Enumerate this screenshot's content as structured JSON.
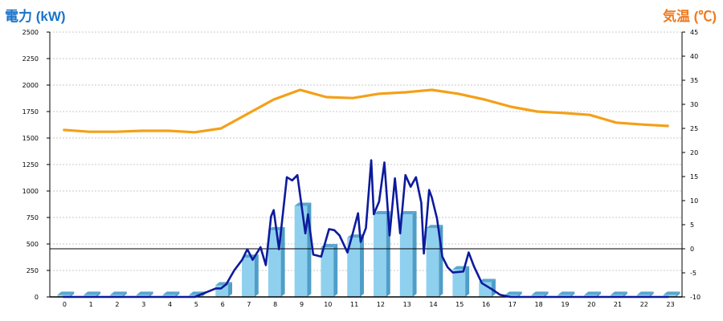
{
  "chart_data": {
    "type": "bar",
    "title_left": "電力 (kW)",
    "title_right": "気温 (℃)",
    "x_categories": [
      "0",
      "1",
      "2",
      "3",
      "4",
      "5",
      "6",
      "7",
      "8",
      "9",
      "10",
      "11",
      "12",
      "13",
      "14",
      "15",
      "16",
      "17",
      "18",
      "19",
      "20",
      "21",
      "22",
      "23"
    ],
    "y_left": {
      "range": [
        0,
        2500
      ],
      "ticks": [
        "0",
        "250",
        "500",
        "750",
        "1000",
        "1250",
        "1500",
        "1750",
        "2000",
        "2250",
        "2500"
      ]
    },
    "y_right": {
      "range": [
        -10,
        45
      ],
      "ticks": [
        "-10",
        "-5",
        "0",
        "5",
        "10",
        "15",
        "20",
        "25",
        "30",
        "35",
        "40",
        "45"
      ]
    },
    "grid": true,
    "reference_line_temp": 0,
    "series": [
      {
        "kind": "bar",
        "axis": "left",
        "color": "#8fd0ef",
        "values": [
          20,
          20,
          20,
          20,
          20,
          20,
          110,
          370,
          630,
          860,
          470,
          560,
          780,
          780,
          650,
          260,
          140,
          20,
          20,
          20,
          20,
          20,
          20,
          20
        ]
      },
      {
        "kind": "line",
        "axis": "left",
        "color": "#0d1a9c",
        "points": [
          [
            0,
            0
          ],
          [
            1,
            0
          ],
          [
            2,
            0
          ],
          [
            3,
            0
          ],
          [
            4,
            0
          ],
          [
            5,
            0
          ],
          [
            5.5,
            50
          ],
          [
            5.8,
            80
          ],
          [
            6,
            80
          ],
          [
            6.2,
            120
          ],
          [
            6.5,
            250
          ],
          [
            6.8,
            350
          ],
          [
            7.0,
            450
          ],
          [
            7.2,
            350
          ],
          [
            7.5,
            470
          ],
          [
            7.7,
            300
          ],
          [
            7.9,
            760
          ],
          [
            8.0,
            820
          ],
          [
            8.2,
            450
          ],
          [
            8.5,
            1130
          ],
          [
            8.7,
            1100
          ],
          [
            8.9,
            1150
          ],
          [
            9.2,
            600
          ],
          [
            9.3,
            780
          ],
          [
            9.5,
            400
          ],
          [
            9.8,
            380
          ],
          [
            10.1,
            640
          ],
          [
            10.3,
            630
          ],
          [
            10.5,
            580
          ],
          [
            10.8,
            420
          ],
          [
            11.0,
            600
          ],
          [
            11.2,
            790
          ],
          [
            11.3,
            520
          ],
          [
            11.5,
            650
          ],
          [
            11.7,
            1290
          ],
          [
            11.8,
            780
          ],
          [
            12.0,
            900
          ],
          [
            12.2,
            1270
          ],
          [
            12.4,
            580
          ],
          [
            12.6,
            1120
          ],
          [
            12.8,
            600
          ],
          [
            13.0,
            1150
          ],
          [
            13.2,
            1040
          ],
          [
            13.4,
            1130
          ],
          [
            13.6,
            890
          ],
          [
            13.7,
            410
          ],
          [
            13.9,
            1010
          ],
          [
            14.0,
            940
          ],
          [
            14.2,
            740
          ],
          [
            14.4,
            380
          ],
          [
            14.6,
            280
          ],
          [
            14.8,
            230
          ],
          [
            15.2,
            240
          ],
          [
            15.4,
            420
          ],
          [
            15.6,
            290
          ],
          [
            15.9,
            130
          ],
          [
            16.3,
            70
          ],
          [
            16.6,
            20
          ],
          [
            17.0,
            0
          ],
          [
            18,
            0
          ],
          [
            19,
            0
          ],
          [
            20,
            0
          ],
          [
            21,
            0
          ],
          [
            22,
            0
          ],
          [
            23,
            0
          ]
        ]
      },
      {
        "kind": "line",
        "axis": "right",
        "color": "#f4a018",
        "values": [
          24.7,
          24.3,
          24.3,
          24.5,
          24.5,
          24.2,
          25.0,
          28.0,
          31.0,
          33.0,
          31.5,
          31.3,
          32.2,
          32.5,
          33.0,
          32.2,
          31.0,
          29.5,
          28.5,
          28.2,
          27.8,
          26.2,
          25.8,
          25.5
        ]
      }
    ]
  }
}
